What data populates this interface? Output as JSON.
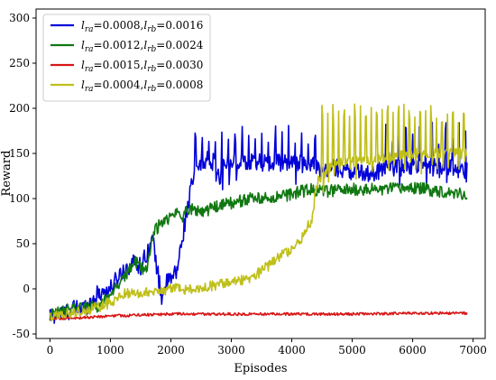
{
  "chart_data": {
    "type": "line",
    "title": "",
    "xlabel": "Episodes",
    "ylabel": "Reward",
    "xlim": [
      -230,
      7200
    ],
    "ylim": [
      -55,
      310
    ],
    "xticks": [
      0,
      1000,
      2000,
      3000,
      4000,
      5000,
      6000,
      7000
    ],
    "yticks": [
      -50,
      0,
      50,
      100,
      150,
      200,
      250,
      300
    ],
    "grid": false,
    "legend_position": "top-left",
    "series": [
      {
        "name_main": "l",
        "name_parts": [
          {
            "t": "l",
            "italic": true
          },
          {
            "t": "ra",
            "italic": true,
            "sub": true
          },
          {
            "t": "=0.0008,"
          },
          {
            "t": "l",
            "italic": true
          },
          {
            "t": "rb",
            "italic": true,
            "sub": true
          },
          {
            "t": "=0.0016"
          }
        ],
        "color": "#0000d8",
        "noise": 10,
        "spikes": {
          "start": 2400,
          "end": 4450,
          "period": 110,
          "height": 185
        },
        "spikes2": {
          "start": 5550,
          "end": 6950,
          "period": 110,
          "height": 185
        },
        "x": [
          0,
          200,
          400,
          600,
          800,
          1000,
          1200,
          1400,
          1500,
          1600,
          1700,
          1800,
          1850,
          1900,
          2000,
          2100,
          2200,
          2300,
          2400,
          2500,
          2600,
          2700,
          2800,
          2900,
          3000,
          3200,
          3400,
          3600,
          3800,
          4000,
          4200,
          4400,
          4500,
          4700,
          5000,
          5300,
          5600,
          6000,
          6300,
          6600,
          6900
        ],
        "y": [
          -30,
          -28,
          -22,
          -20,
          -5,
          0,
          20,
          30,
          25,
          40,
          55,
          10,
          -10,
          5,
          10,
          20,
          60,
          100,
          130,
          140,
          145,
          140,
          120,
          140,
          140,
          142,
          142,
          140,
          140,
          142,
          140,
          140,
          130,
          135,
          130,
          128,
          135,
          135,
          135,
          135,
          130
        ]
      },
      {
        "name_parts": [
          {
            "t": "l",
            "italic": true
          },
          {
            "t": "ra",
            "italic": true,
            "sub": true
          },
          {
            "t": "=0.0012,"
          },
          {
            "t": "l",
            "italic": true
          },
          {
            "t": "rb",
            "italic": true,
            "sub": true
          },
          {
            "t": "=0.0024"
          }
        ],
        "color": "#117811",
        "noise": 7,
        "spikes": null,
        "spikes2": null,
        "x": [
          0,
          200,
          400,
          600,
          800,
          1000,
          1200,
          1400,
          1600,
          1700,
          1800,
          1900,
          2000,
          2100,
          2200,
          2300,
          2500,
          2700,
          3000,
          3300,
          3600,
          4000,
          4300,
          4500,
          5000,
          5500,
          6000,
          6500,
          6900
        ],
        "y": [
          -30,
          -25,
          -20,
          -20,
          -20,
          -5,
          10,
          30,
          20,
          60,
          70,
          75,
          80,
          85,
          80,
          90,
          85,
          90,
          95,
          100,
          100,
          105,
          110,
          108,
          110,
          110,
          112,
          108,
          105
        ]
      },
      {
        "name_parts": [
          {
            "t": "l",
            "italic": true
          },
          {
            "t": "ra",
            "italic": true,
            "sub": true
          },
          {
            "t": "=0.0015,"
          },
          {
            "t": "l",
            "italic": true
          },
          {
            "t": "rb",
            "italic": true,
            "sub": true
          },
          {
            "t": "=0.0030"
          }
        ],
        "color": "#d81616",
        "noise": 1.5,
        "spikes": null,
        "spikes2": null,
        "x": [
          0,
          500,
          1000,
          2000,
          3000,
          4000,
          5000,
          6000,
          6900
        ],
        "y": [
          -33,
          -32,
          -30,
          -28,
          -28,
          -28,
          -28,
          -27,
          -27
        ]
      },
      {
        "name_parts": [
          {
            "t": "l",
            "italic": true
          },
          {
            "t": "ra",
            "italic": true,
            "sub": true
          },
          {
            "t": "=0.0004,"
          },
          {
            "t": "l",
            "italic": true
          },
          {
            "t": "rb",
            "italic": true,
            "sub": true
          },
          {
            "t": "=0.0008"
          }
        ],
        "color": "#bfbf1a",
        "noise": 6,
        "spikes": {
          "start": 4500,
          "end": 6950,
          "period": 90,
          "height": 205
        },
        "spikes2": null,
        "x": [
          0,
          500,
          800,
          1000,
          1200,
          1400,
          2000,
          2500,
          2800,
          3000,
          3300,
          3500,
          3700,
          4000,
          4200,
          4350,
          4400,
          4500,
          4700,
          5000,
          5500,
          6000,
          6500,
          6900
        ],
        "y": [
          -30,
          -25,
          -20,
          -15,
          -5,
          -5,
          0,
          0,
          5,
          10,
          10,
          20,
          30,
          45,
          60,
          80,
          115,
          125,
          140,
          140,
          145,
          150,
          150,
          150
        ]
      }
    ]
  }
}
